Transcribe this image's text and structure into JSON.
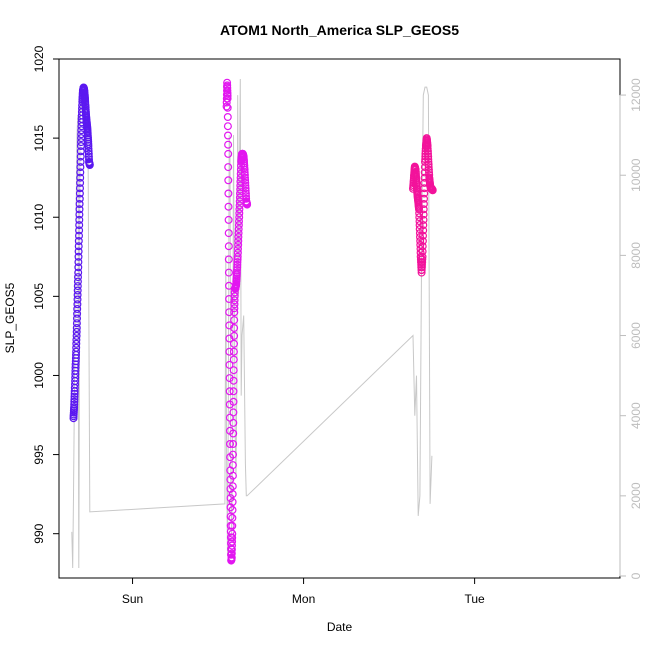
{
  "chart_data": {
    "type": "scatter",
    "title": "ATOM1 North_America SLP_GEOS5",
    "xlabel": "Date",
    "ylabel": "SLP_GEOS5",
    "x_unit": "days from Sun 00:00",
    "xlim": [
      -0.43,
      2.85
    ],
    "ylim": [
      987.2,
      1020.0
    ],
    "y2lim": [
      -50,
      12900
    ],
    "x_ticks": [
      {
        "value": 0,
        "label": "Sun"
      },
      {
        "value": 1,
        "label": "Mon"
      },
      {
        "value": 2,
        "label": "Tue"
      }
    ],
    "y_ticks": [
      990,
      995,
      1000,
      1005,
      1010,
      1015,
      1020
    ],
    "y2_ticks": [
      0,
      2000,
      4000,
      6000,
      8000,
      10000,
      12000
    ],
    "grid": false,
    "legend": "none",
    "colors": {
      "flight1": "#5b18f0",
      "flight2": "#e217f0",
      "flight3": "#f2139b",
      "altitude": "#c8c8c8",
      "right_axis": "#bdbdbd"
    },
    "series": [
      {
        "color_key": "flight1",
        "points": [
          [
            -0.345,
            997.3
          ],
          [
            -0.342,
            998.0
          ],
          [
            -0.338,
            999.0
          ],
          [
            -0.334,
            1000.3
          ],
          [
            -0.33,
            1001.5
          ],
          [
            -0.326,
            1003.0
          ],
          [
            -0.322,
            1004.8
          ],
          [
            -0.318,
            1006.5
          ],
          [
            -0.314,
            1008.5
          ],
          [
            -0.31,
            1010.5
          ],
          [
            -0.306,
            1012.5
          ],
          [
            -0.302,
            1014.5
          ],
          [
            -0.298,
            1016.0
          ],
          [
            -0.294,
            1017.3
          ],
          [
            -0.29,
            1018.0
          ],
          [
            -0.286,
            1018.2
          ],
          [
            -0.282,
            1018.0
          ],
          [
            -0.278,
            1017.5
          ],
          [
            -0.274,
            1016.8
          ],
          [
            -0.27,
            1016.2
          ],
          [
            -0.266,
            1015.8
          ],
          [
            -0.262,
            1015.3
          ],
          [
            -0.258,
            1014.5
          ],
          [
            -0.254,
            1013.5
          ],
          [
            -0.25,
            1013.3
          ]
        ]
      },
      {
        "color_key": "flight2",
        "points": [
          [
            0.55,
            1017.0
          ],
          [
            0.553,
            1018.5
          ],
          [
            0.556,
            1017.5
          ],
          [
            0.559,
            1014.0
          ],
          [
            0.562,
            1009.0
          ],
          [
            0.565,
            1004.0
          ],
          [
            0.568,
            999.0
          ],
          [
            0.571,
            994.0
          ],
          [
            0.574,
            990.5
          ],
          [
            0.577,
            988.3
          ],
          [
            0.58,
            988.5
          ],
          [
            0.583,
            990.0
          ],
          [
            0.586,
            993.0
          ],
          [
            0.589,
            997.0
          ],
          [
            0.592,
            1001.0
          ],
          [
            0.595,
            1004.0
          ],
          [
            0.598,
            1005.5
          ],
          [
            0.602,
            1005.5
          ],
          [
            0.606,
            1005.8
          ],
          [
            0.61,
            1006.5
          ],
          [
            0.615,
            1007.5
          ],
          [
            0.62,
            1009.0
          ],
          [
            0.625,
            1010.5
          ],
          [
            0.63,
            1012.0
          ],
          [
            0.635,
            1013.5
          ],
          [
            0.64,
            1014.0
          ],
          [
            0.645,
            1014.0
          ],
          [
            0.65,
            1013.8
          ],
          [
            0.655,
            1013.0
          ],
          [
            0.66,
            1012.0
          ],
          [
            0.665,
            1011.0
          ],
          [
            0.67,
            1010.8
          ]
        ]
      },
      {
        "color_key": "flight3",
        "points": [
          [
            1.64,
            1011.8
          ],
          [
            1.645,
            1012.5
          ],
          [
            1.65,
            1013.2
          ],
          [
            1.655,
            1013.0
          ],
          [
            1.66,
            1012.2
          ],
          [
            1.665,
            1011.5
          ],
          [
            1.67,
            1011.0
          ],
          [
            1.675,
            1010.5
          ],
          [
            1.68,
            1009.0
          ],
          [
            1.685,
            1007.5
          ],
          [
            1.69,
            1006.5
          ],
          [
            1.695,
            1007.5
          ],
          [
            1.7,
            1009.5
          ],
          [
            1.705,
            1011.5
          ],
          [
            1.71,
            1013.5
          ],
          [
            1.715,
            1014.5
          ],
          [
            1.72,
            1015.0
          ],
          [
            1.725,
            1014.5
          ],
          [
            1.73,
            1013.5
          ],
          [
            1.735,
            1012.5
          ],
          [
            1.74,
            1012.0
          ],
          [
            1.745,
            1011.8
          ],
          [
            1.75,
            1011.8
          ],
          [
            1.755,
            1011.7
          ]
        ]
      }
    ],
    "altitude_series": {
      "axis": "right",
      "points": [
        [
          -0.355,
          1100
        ],
        [
          -0.35,
          200
        ],
        [
          -0.345,
          2000
        ],
        [
          -0.34,
          4500
        ],
        [
          -0.335,
          7000
        ],
        [
          -0.33,
          9000
        ],
        [
          -0.325,
          11000
        ],
        [
          -0.32,
          11500
        ],
        [
          -0.318,
          11200
        ],
        [
          -0.316,
          3000
        ],
        [
          -0.314,
          200
        ],
        [
          -0.312,
          3000
        ],
        [
          -0.308,
          11000
        ],
        [
          -0.3,
          12000
        ],
        [
          -0.29,
          11800
        ],
        [
          -0.28,
          11500
        ],
        [
          -0.27,
          11000
        ],
        [
          -0.26,
          10500
        ],
        [
          -0.25,
          1600
        ],
        [
          0.54,
          1800
        ],
        [
          0.545,
          8000
        ],
        [
          0.55,
          3000
        ],
        [
          0.555,
          500
        ],
        [
          0.56,
          4000
        ],
        [
          0.565,
          11000
        ],
        [
          0.57,
          10500
        ],
        [
          0.575,
          2000
        ],
        [
          0.58,
          1000
        ],
        [
          0.585,
          3500
        ],
        [
          0.59,
          11000
        ],
        [
          0.595,
          7000
        ],
        [
          0.6,
          3500
        ],
        [
          0.605,
          2500
        ],
        [
          0.61,
          5000
        ],
        [
          0.615,
          12000
        ],
        [
          0.62,
          7000
        ],
        [
          0.625,
          10000
        ],
        [
          0.63,
          12400
        ],
        [
          0.635,
          4500
        ],
        [
          0.64,
          6000
        ],
        [
          0.65,
          6500
        ],
        [
          0.66,
          2800
        ],
        [
          0.665,
          2000
        ],
        [
          0.67,
          2000
        ],
        [
          1.64,
          6000
        ],
        [
          1.65,
          4000
        ],
        [
          1.66,
          5000
        ],
        [
          1.67,
          1500
        ],
        [
          1.68,
          2000
        ],
        [
          1.69,
          8000
        ],
        [
          1.7,
          12000
        ],
        [
          1.71,
          12200
        ],
        [
          1.72,
          12200
        ],
        [
          1.73,
          12000
        ],
        [
          1.74,
          1800
        ],
        [
          1.75,
          3000
        ]
      ]
    }
  }
}
